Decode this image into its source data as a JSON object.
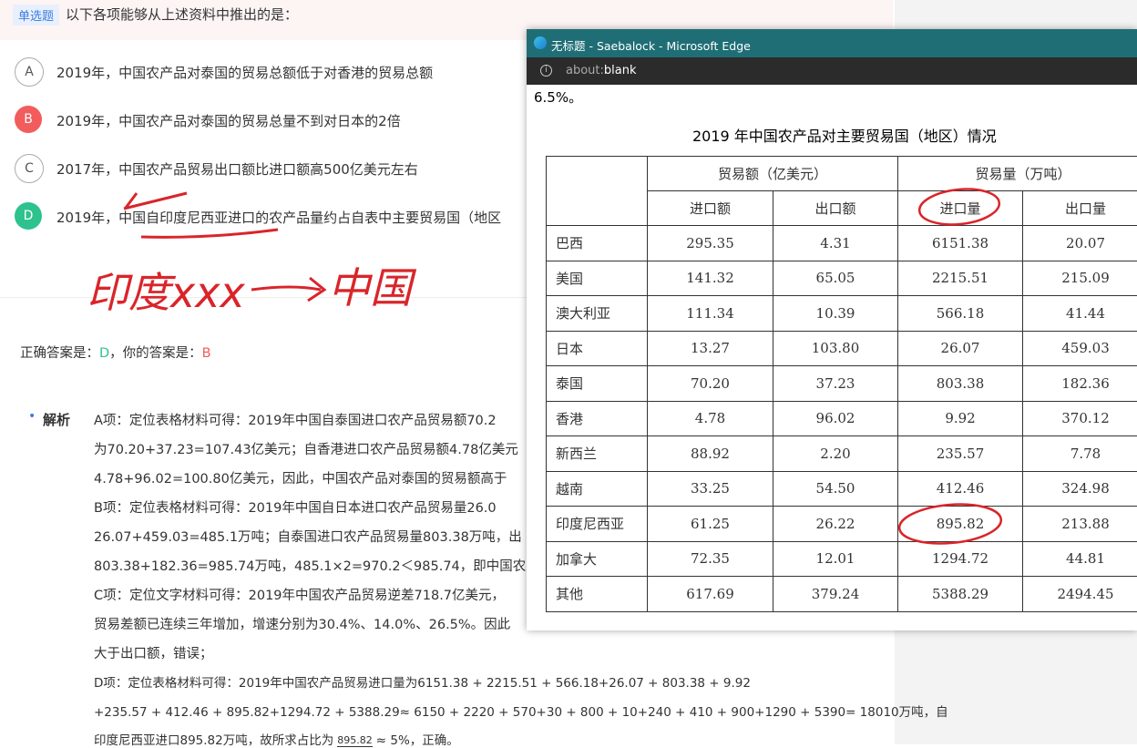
{
  "question": {
    "tag": "单选题",
    "text": "以下各项能够从上述资料中推出的是："
  },
  "options": [
    {
      "letter": "A",
      "text": "2019年，中国农产品对泰国的贸易总额低于对香港的贸易总额"
    },
    {
      "letter": "B",
      "text": "2019年，中国农产品对泰国的贸易总量不到对日本的2倍"
    },
    {
      "letter": "C",
      "text": "2017年，中国农产品贸易出口额比进口额高500亿美元左右"
    },
    {
      "letter": "D",
      "text": "2019年，中国自印度尼西亚进口的农产品量约占自表中主要贸易国（地区"
    }
  ],
  "handwriting": [
    "印度xxx",
    "中国"
  ],
  "answer": {
    "correct_label": "正确答案是：",
    "correct": "D",
    "yours_label": "，你的答案是：",
    "yours": "B"
  },
  "analysis": {
    "label": "解析",
    "lines": [
      "A项：定位表格材料可得：2019年中国自泰国进口农产品贸易额70.2",
      "为70.20+37.23=107.43亿美元；自香港进口农产品贸易额4.78亿美元",
      "4.78+96.02=100.80亿美元，因此，中国农产品对泰国的贸易额高于",
      "B项：定位表格材料可得：2019年中国自日本进口农产品贸易量26.0",
      "26.07+459.03=485.1万吨；自泰国进口农产品贸易量803.38万吨，出",
      "803.38+182.36=985.74万吨，485.1×2=970.2＜985.74，即中国农产",
      "C项：定位文字材料可得：2019年中国农产品贸易逆差718.7亿美元，",
      "贸易差额已连续三年增加，增速分别为30.4%、14.0%、26.5%。因此",
      "大于出口额，错误；",
      "D项：定位表格材料可得：2019年中国农产品贸易进口量为6151.38 + 2215.51 + 566.18+26.07 + 803.38 + 9.92",
      "+235.57 + 412.46 + 895.82+1294.72 + 5388.29≈ 6150 + 2220 + 570+30 + 800 + 10+240 + 410 + 900+1290 + 5390= 18010万吨，自",
      "印度尼西亚进口895.82万吨，故所求占比为"
    ],
    "fraction_numerator": "895.82",
    "tail": "≈ 5%，正确。"
  },
  "browser": {
    "title": "无标题 - Saebalock - Microsoft Edge",
    "address_scheme": "about:",
    "address_page": "blank",
    "text": "6.5%。",
    "table": {
      "title": "2019 年中国农产品对主要贸易国（地区）情况",
      "group_headers": [
        "贸易额（亿美元）",
        "贸易量（万吨）"
      ],
      "sub_headers": [
        "进口额",
        "出口额",
        "进口量",
        "出口量"
      ],
      "rows": [
        [
          "巴西",
          "295.35",
          "4.31",
          "6151.38",
          "20.07"
        ],
        [
          "美国",
          "141.32",
          "65.05",
          "2215.51",
          "215.09"
        ],
        [
          "澳大利亚",
          "111.34",
          "10.39",
          "566.18",
          "41.44"
        ],
        [
          "日本",
          "13.27",
          "103.80",
          "26.07",
          "459.03"
        ],
        [
          "泰国",
          "70.20",
          "37.23",
          "803.38",
          "182.36"
        ],
        [
          "香港",
          "4.78",
          "96.02",
          "9.92",
          "370.12"
        ],
        [
          "新西兰",
          "88.92",
          "2.20",
          "235.57",
          "7.78"
        ],
        [
          "越南",
          "33.25",
          "54.50",
          "412.46",
          "324.98"
        ],
        [
          "印度尼西亚",
          "61.25",
          "26.22",
          "895.82",
          "213.88"
        ],
        [
          "加拿大",
          "72.35",
          "12.01",
          "1294.72",
          "44.81"
        ],
        [
          "其他",
          "617.69",
          "379.24",
          "5388.29",
          "2494.45"
        ]
      ]
    }
  }
}
